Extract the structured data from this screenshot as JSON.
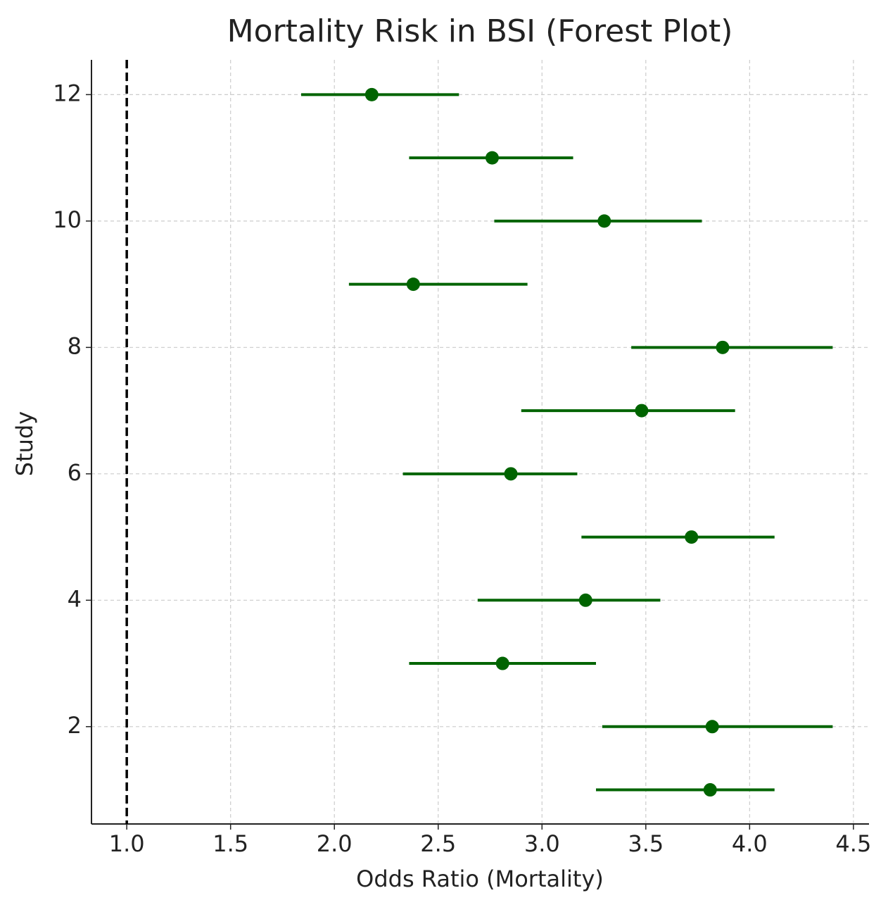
{
  "chart_data": {
    "type": "forest",
    "title": "Mortality Risk in BSI (Forest Plot)",
    "x_label": "Odds Ratio (Mortality)",
    "y_label": "Study",
    "color": "#006400",
    "reference_line": 1,
    "grid": true,
    "xlim": [
      0.83,
      4.575
    ],
    "ylim": [
      0.46,
      12.55
    ],
    "xticks": [
      {
        "value": 1,
        "label": "1.0"
      },
      {
        "value": 1.5,
        "label": "1.5"
      },
      {
        "value": 2,
        "label": "2.0"
      },
      {
        "value": 2.5,
        "label": "2.5"
      },
      {
        "value": 3,
        "label": "3.0"
      },
      {
        "value": 3.5,
        "label": "3.5"
      },
      {
        "value": 4,
        "label": "4.0"
      },
      {
        "value": 4.5,
        "label": "4.5"
      }
    ],
    "yticks": [
      2,
      4,
      6,
      8,
      10,
      12
    ],
    "study": [
      1,
      2,
      3,
      4,
      5,
      6,
      7,
      8,
      9,
      10,
      11,
      12
    ],
    "odds_ratio": [
      3.81,
      3.82,
      2.81,
      3.21,
      3.72,
      2.85,
      3.48,
      3.87,
      2.38,
      3.3,
      2.76,
      2.18
    ],
    "ci_lower": [
      3.26,
      3.29,
      2.36,
      2.69,
      3.19,
      2.33,
      2.9,
      3.43,
      2.07,
      2.77,
      2.36,
      1.84
    ],
    "ci_upper": [
      4.12,
      4.4,
      3.26,
      3.57,
      4.12,
      3.17,
      3.93,
      4.4,
      2.93,
      3.77,
      3.15,
      2.6
    ]
  }
}
